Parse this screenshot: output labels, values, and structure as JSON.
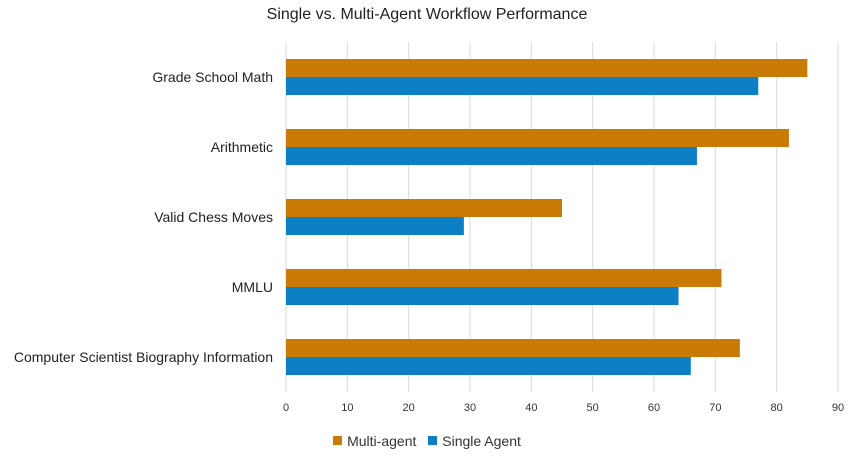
{
  "chart_data": {
    "type": "bar",
    "orientation": "horizontal",
    "title": "Single vs. Multi-Agent Workflow Performance",
    "categories": [
      "Grade School Math",
      "Arithmetic",
      "Valid Chess Moves",
      "MMLU",
      "Computer Scientist Biography Information"
    ],
    "series": [
      {
        "name": "Multi-agent",
        "color": "#C97A07",
        "values": [
          85,
          82,
          45,
          71,
          74
        ]
      },
      {
        "name": "Single Agent",
        "color": "#0C7FC5",
        "values": [
          77,
          67,
          29,
          64,
          66
        ]
      }
    ],
    "xlim": [
      0,
      90
    ],
    "xticks": [
      0,
      10,
      20,
      30,
      40,
      50,
      60,
      70,
      80,
      90
    ],
    "grid": true,
    "legend_position": "bottom"
  }
}
